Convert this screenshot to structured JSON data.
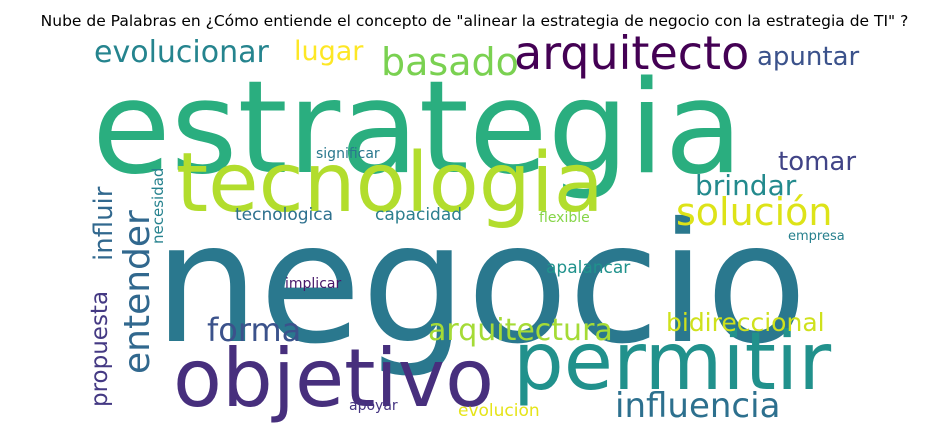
{
  "title": "Nube de Palabras en ¿Cómo entiende el concepto de \"alinear la estrategia de negocio con la estrategia de TI\" ?",
  "words": [
    {
      "text": "estrategia",
      "color": "#2aae7f"
    },
    {
      "text": "negocio",
      "color": "#2a788e"
    },
    {
      "text": "tecnologia",
      "color": "#b2dd2d"
    },
    {
      "text": "objetivo",
      "color": "#472f7d"
    },
    {
      "text": "permitir",
      "color": "#21918c"
    },
    {
      "text": "arquitecto",
      "color": "#440154"
    },
    {
      "text": "basado",
      "color": "#7ad151"
    },
    {
      "text": "evolucionar",
      "color": "#25848e"
    },
    {
      "text": "lugar",
      "color": "#fde725"
    },
    {
      "text": "apuntar",
      "color": "#3b528b"
    },
    {
      "text": "solución",
      "color": "#dde318"
    },
    {
      "text": "brindar",
      "color": "#238a8d"
    },
    {
      "text": "tomar",
      "color": "#414487"
    },
    {
      "text": "entender",
      "color": "#31688e"
    },
    {
      "text": "influir",
      "color": "#31688e"
    },
    {
      "text": "propuesta",
      "color": "#443983"
    },
    {
      "text": "necesidad",
      "color": "#26828e"
    },
    {
      "text": "forma",
      "color": "#3b528b"
    },
    {
      "text": "arquitectura",
      "color": "#a5db36"
    },
    {
      "text": "bidireccional",
      "color": "#cfe11c"
    },
    {
      "text": "influencia",
      "color": "#2d708e"
    },
    {
      "text": "significar",
      "color": "#2a788e"
    },
    {
      "text": "tecnologica",
      "color": "#2d708e"
    },
    {
      "text": "capacidad",
      "color": "#2c7f8e"
    },
    {
      "text": "flexible",
      "color": "#86d549"
    },
    {
      "text": "empresa",
      "color": "#27808e"
    },
    {
      "text": "apalancar",
      "color": "#20928c"
    },
    {
      "text": "implicar",
      "color": "#48186a"
    },
    {
      "text": "apoyar",
      "color": "#453581"
    },
    {
      "text": "evolucion",
      "color": "#e5e419"
    }
  ]
}
